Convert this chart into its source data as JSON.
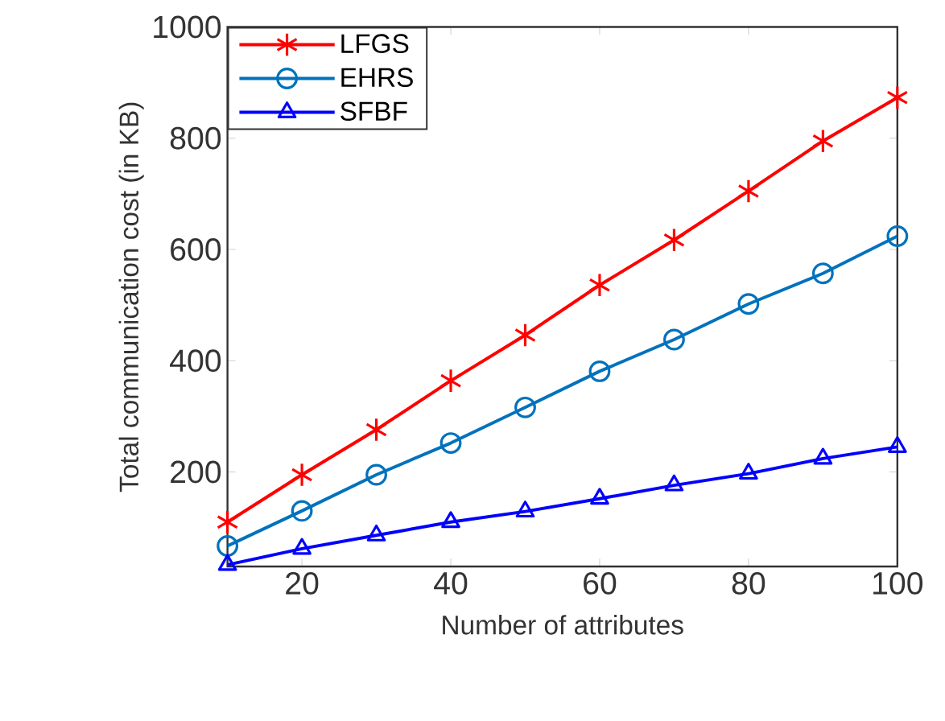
{
  "chart_data": {
    "type": "line",
    "xlabel": "Number of attributes",
    "ylabel": "Total communication cost (in KB)",
    "x": [
      10,
      20,
      30,
      40,
      50,
      60,
      70,
      80,
      90,
      100
    ],
    "series": [
      {
        "name": "LFGS",
        "color": "#ff0000",
        "marker": "cross",
        "values": [
          110,
          195,
          276,
          364,
          446,
          536,
          617,
          705,
          795,
          873
        ]
      },
      {
        "name": "EHRS",
        "color": "#0072bd",
        "marker": "circle",
        "values": [
          67,
          130,
          195,
          252,
          316,
          381,
          438,
          502,
          557,
          624
        ]
      },
      {
        "name": "SFBF",
        "color": "#0000ff",
        "marker": "triangle",
        "values": [
          33,
          62,
          86,
          110,
          129,
          152,
          176,
          197,
          224,
          245
        ]
      }
    ],
    "xlim": [
      10,
      100
    ],
    "ylim": [
      30,
      1000
    ],
    "xticks": [
      20,
      40,
      60,
      80,
      100
    ],
    "yticks": [
      200,
      400,
      600,
      800,
      1000
    ],
    "legend": "top left",
    "grid": false,
    "line_style": "solid"
  }
}
